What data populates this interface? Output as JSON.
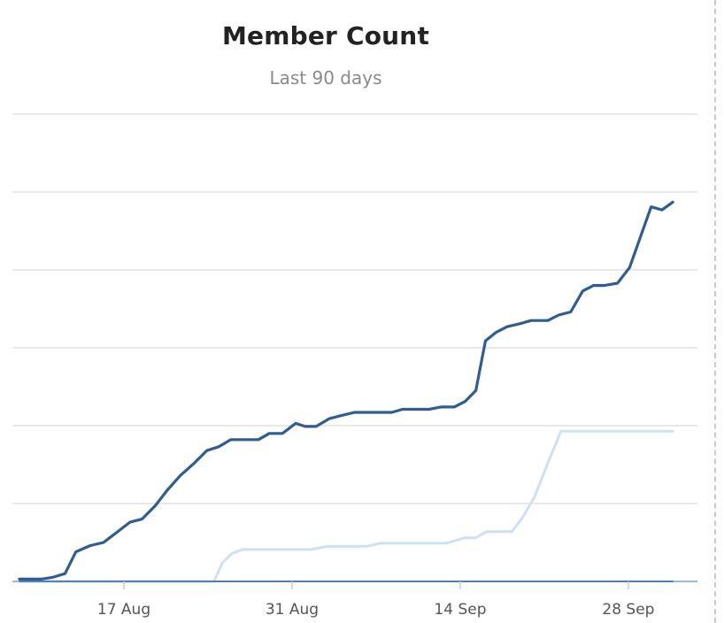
{
  "chart_data": {
    "type": "line",
    "title": "Member Count",
    "subtitle": "Last 90 days",
    "xlabel": "",
    "ylabel": "",
    "x_axis": {
      "tick_labels": [
        "17 Aug",
        "31 Aug",
        "14 Sep",
        "28 Sep"
      ],
      "tick_days": [
        17,
        31,
        45,
        59
      ]
    },
    "ylim": [
      0,
      6
    ],
    "gridlines": [
      1,
      2,
      3,
      4,
      5,
      6
    ],
    "grid": true,
    "legend": "none",
    "colors": {
      "series_1": "#2f5d91",
      "series_2": "#cfe0f4",
      "series_3": "#3f72b0",
      "grid": "#e0e0e0",
      "baseline": "#7aa0cc"
    },
    "series": [
      {
        "x": [
          8.3,
          10.1,
          11.0,
          12.1,
          13.0,
          14.2,
          15.3,
          16.4,
          17.5,
          18.5,
          19.6,
          20.6,
          21.7,
          22.8,
          23.9,
          24.9,
          25.9,
          27.1,
          28.2,
          29.1,
          30.2,
          31.3,
          32.1,
          33.0,
          34.1,
          35.1,
          36.2,
          37.3,
          38.4,
          39.3,
          40.2,
          41.2,
          42.4,
          43.4,
          44.5,
          45.4,
          46.3,
          47.1,
          48.0,
          48.9,
          50.0,
          50.9,
          52.3,
          53.2,
          54.2,
          55.2,
          56.1,
          57.0,
          58.1,
          59.1,
          60.0,
          60.9,
          61.8,
          62.7
        ],
        "y": [
          0.03,
          0.03,
          0.05,
          0.1,
          0.38,
          0.46,
          0.5,
          0.63,
          0.76,
          0.8,
          0.97,
          1.17,
          1.36,
          1.51,
          1.68,
          1.73,
          1.82,
          1.82,
          1.82,
          1.9,
          1.9,
          2.03,
          1.99,
          1.99,
          2.09,
          2.13,
          2.17,
          2.17,
          2.17,
          2.17,
          2.21,
          2.21,
          2.21,
          2.24,
          2.24,
          2.31,
          2.45,
          3.09,
          3.2,
          3.27,
          3.31,
          3.35,
          3.35,
          3.42,
          3.46,
          3.73,
          3.8,
          3.8,
          3.83,
          4.03,
          4.42,
          4.81,
          4.77,
          4.87
        ]
      },
      {
        "x": [
          8.3,
          16.2,
          24.5,
          25.2,
          26.0,
          26.9,
          28.1,
          29.3,
          30.4,
          31.5,
          32.6,
          33.9,
          35.1,
          36.2,
          37.2,
          38.3,
          39.4,
          40.5,
          41.6,
          42.7,
          43.8,
          45.4,
          46.3,
          47.2,
          48.1,
          49.3,
          50.2,
          51.2,
          52.3,
          53.4,
          54.3,
          55.2,
          56.2,
          57.3,
          58.5,
          59.8,
          61.0,
          62.1,
          62.7
        ],
        "y": [
          0,
          0,
          0,
          0.24,
          0.36,
          0.41,
          0.41,
          0.41,
          0.41,
          0.41,
          0.41,
          0.45,
          0.45,
          0.45,
          0.45,
          0.49,
          0.49,
          0.49,
          0.49,
          0.49,
          0.49,
          0.56,
          0.56,
          0.64,
          0.64,
          0.64,
          0.82,
          1.09,
          1.52,
          1.93,
          1.93,
          1.93,
          1.93,
          1.93,
          1.93,
          1.93,
          1.93,
          1.93,
          1.93
        ]
      },
      {
        "x": [
          8.3,
          62.7
        ],
        "y": [
          0,
          0
        ]
      }
    ]
  }
}
